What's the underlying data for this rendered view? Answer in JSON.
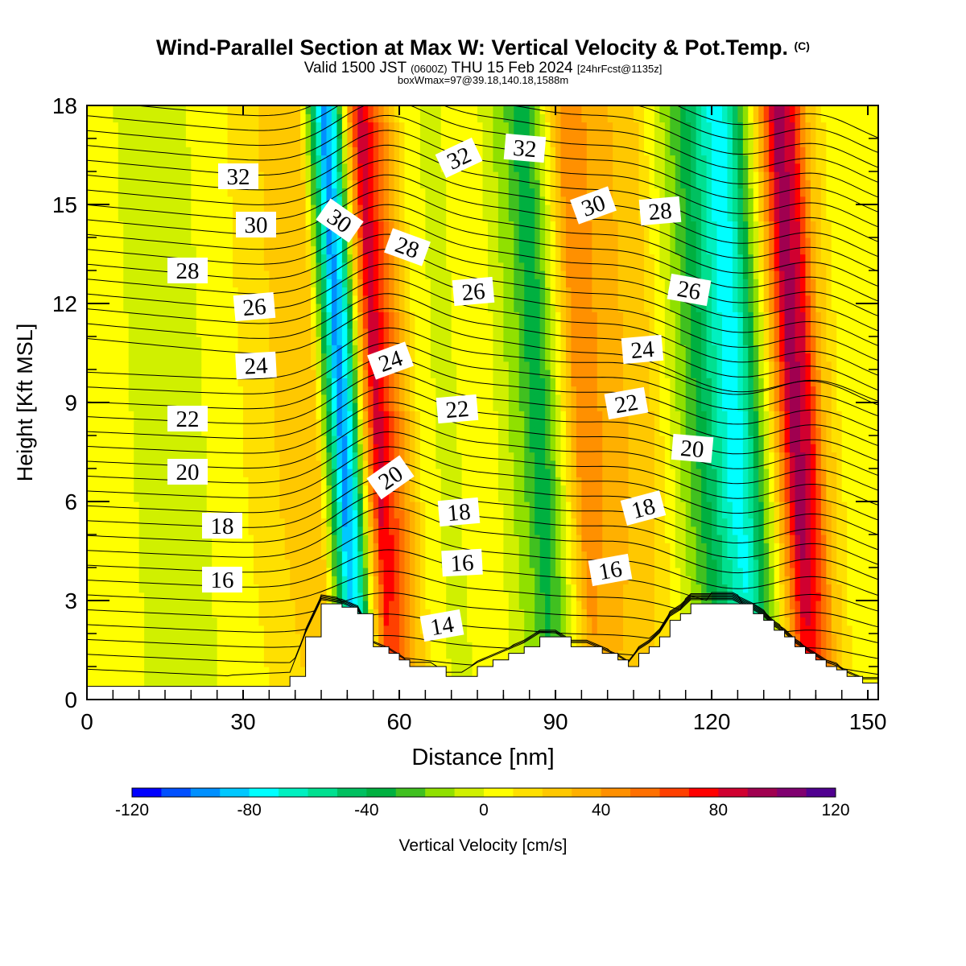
{
  "title": {
    "main": "Wind-Parallel Section at Max W: Vertical Velocity & Pot.Temp.",
    "copyright": "(C)",
    "valid_prefix": "Valid 1500 JST",
    "valid_utc": "(0600Z)",
    "valid_date": "THU 15 Feb 2024",
    "forecast": "[24hrFcst@1135z]",
    "box": "boxWmax=97@39.18,140.18,1588m"
  },
  "colorbar": {
    "label": "Vertical Velocity [cm/s]",
    "tick_labels": [
      "-120",
      "-80",
      "-40",
      "0",
      "40",
      "80",
      "120"
    ],
    "colors": [
      "#0000ff",
      "#0050ff",
      "#0090ff",
      "#00c8ff",
      "#00ffff",
      "#00f0c0",
      "#00e090",
      "#00c060",
      "#00b040",
      "#40c020",
      "#90e000",
      "#d0f000",
      "#ffff00",
      "#ffe000",
      "#ffc800",
      "#ffb000",
      "#ff9000",
      "#ff7000",
      "#ff4000",
      "#ff0000",
      "#d00030",
      "#a00050",
      "#800070",
      "#500090"
    ]
  },
  "chart_data": {
    "type": "heatmap",
    "xlabel": "Distance [nm]",
    "ylabel": "Height [Kft MSL]",
    "x_ticks": [
      "0",
      "30",
      "60",
      "90",
      "120",
      "150"
    ],
    "y_ticks": [
      "0",
      "3",
      "6",
      "9",
      "12",
      "15",
      "18"
    ],
    "xlim": [
      0,
      152
    ],
    "ylim": [
      0,
      18
    ],
    "units": "cm/s",
    "color_range": [
      -120,
      120
    ],
    "vertical_velocity_profile": {
      "x": [
        0,
        20,
        35,
        40,
        45,
        48,
        50,
        52,
        55,
        57,
        60,
        65,
        70,
        75,
        80,
        85,
        88,
        90,
        93,
        96,
        100,
        105,
        110,
        115,
        120,
        124,
        126,
        128,
        132,
        135,
        137,
        140,
        143,
        146,
        150,
        152
      ],
      "w": [
        5,
        -5,
        15,
        25,
        30,
        -40,
        -100,
        -70,
        40,
        90,
        60,
        10,
        -5,
        5,
        0,
        -20,
        -40,
        -25,
        10,
        50,
        40,
        30,
        20,
        -10,
        -40,
        -70,
        -80,
        -60,
        0,
        60,
        100,
        80,
        30,
        10,
        5,
        5
      ]
    },
    "terrain_kft": {
      "x": [
        0,
        39,
        42,
        45,
        49,
        52,
        55,
        58,
        60,
        62,
        66,
        69,
        72,
        75,
        78,
        81,
        84,
        87,
        90,
        93,
        96,
        99,
        102,
        104,
        106,
        108,
        110,
        112,
        114,
        116,
        120,
        124,
        128,
        130,
        132,
        134,
        136,
        138,
        140,
        142,
        144,
        146,
        149,
        152
      ],
      "h": [
        0.4,
        0.7,
        1.9,
        2.9,
        2.8,
        2.6,
        1.6,
        1.4,
        1.2,
        1.0,
        1.0,
        0.7,
        0.7,
        1.0,
        1.2,
        1.4,
        1.6,
        1.9,
        1.9,
        1.6,
        1.6,
        1.4,
        1.2,
        1.0,
        1.4,
        1.6,
        1.9,
        2.4,
        2.6,
        2.9,
        2.9,
        2.9,
        2.6,
        2.4,
        2.1,
        1.9,
        1.6,
        1.4,
        1.2,
        1.0,
        0.9,
        0.7,
        0.5,
        0.5
      ]
    },
    "theta_contour_labels": [
      "14",
      "16",
      "18",
      "20",
      "22",
      "24",
      "26",
      "28",
      "30",
      "32"
    ]
  }
}
